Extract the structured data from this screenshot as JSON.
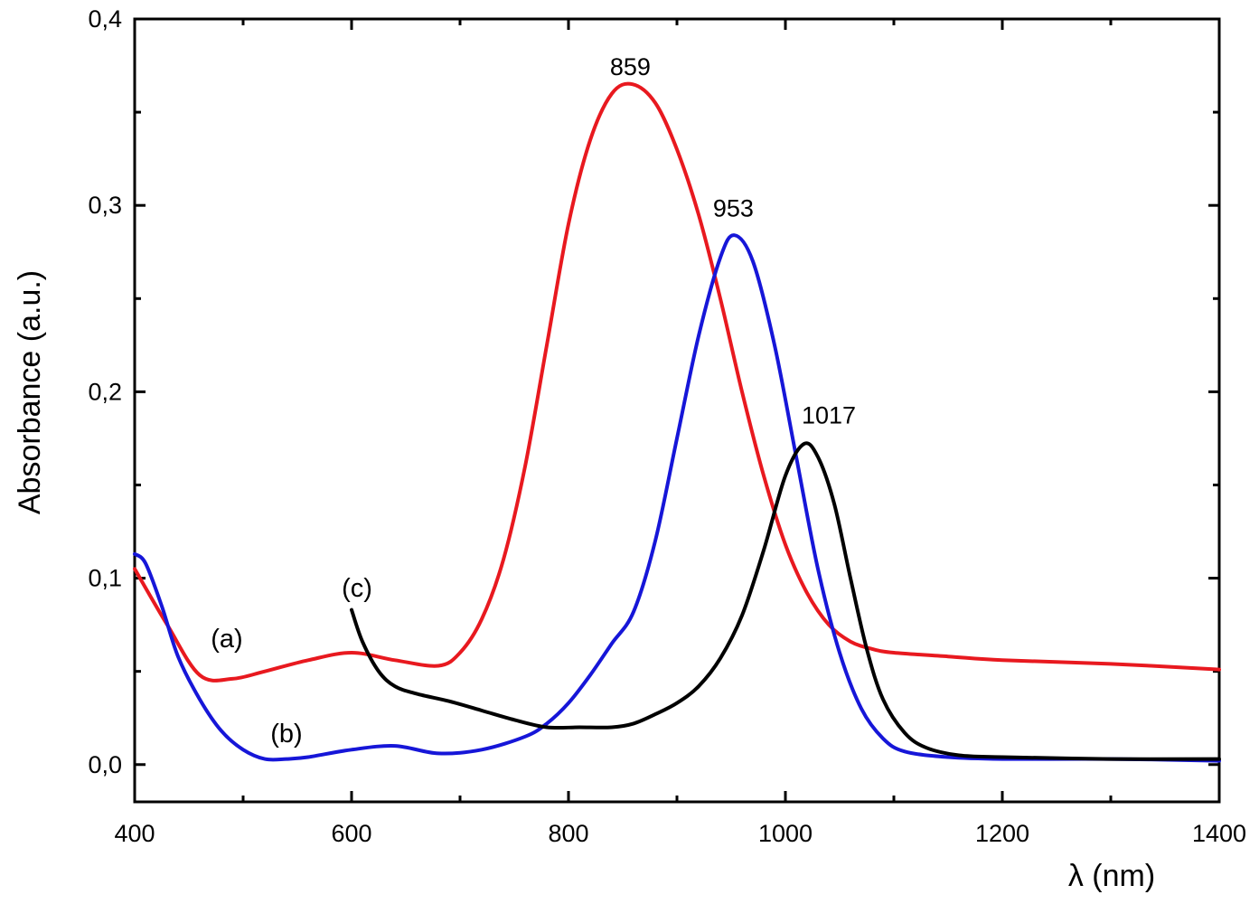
{
  "chart_data": {
    "type": "line",
    "title": "",
    "xlabel": "λ (nm)",
    "ylabel": "Absorbance (a.u.)",
    "xlim": [
      400,
      1400
    ],
    "ylim": [
      -0.02,
      0.4
    ],
    "x_ticks": [
      {
        "value": 400,
        "label": "400"
      },
      {
        "value": 600,
        "label": "600"
      },
      {
        "value": 800,
        "label": "800"
      },
      {
        "value": 1000,
        "label": "1000"
      },
      {
        "value": 1200,
        "label": "1200"
      },
      {
        "value": 1400,
        "label": "1400"
      }
    ],
    "y_ticks": [
      {
        "value": 0.0,
        "label": "0,0"
      },
      {
        "value": 0.1,
        "label": "0,1"
      },
      {
        "value": 0.2,
        "label": "0,2"
      },
      {
        "value": 0.3,
        "label": "0,3"
      },
      {
        "value": 0.4,
        "label": "0,4"
      }
    ],
    "grid": false,
    "series": [
      {
        "name": "(a)",
        "color": "#e8191f",
        "x": [
          400,
          430,
          460,
          490,
          520,
          560,
          600,
          640,
          680,
          700,
          720,
          740,
          760,
          780,
          800,
          820,
          840,
          859,
          880,
          900,
          920,
          940,
          960,
          980,
          1000,
          1020,
          1040,
          1060,
          1080,
          1100,
          1150,
          1200,
          1300,
          1400
        ],
        "y": [
          0.105,
          0.075,
          0.048,
          0.046,
          0.05,
          0.056,
          0.06,
          0.056,
          0.053,
          0.06,
          0.078,
          0.11,
          0.16,
          0.225,
          0.29,
          0.335,
          0.36,
          0.365,
          0.355,
          0.33,
          0.295,
          0.25,
          0.2,
          0.155,
          0.118,
          0.092,
          0.075,
          0.066,
          0.062,
          0.06,
          0.058,
          0.056,
          0.054,
          0.051
        ]
      },
      {
        "name": "(b)",
        "color": "#1616d8",
        "x": [
          400,
          410,
          425,
          440,
          460,
          480,
          500,
          520,
          540,
          560,
          600,
          640,
          680,
          720,
          760,
          780,
          800,
          820,
          840,
          860,
          880,
          900,
          920,
          940,
          953,
          970,
          990,
          1010,
          1030,
          1050,
          1070,
          1090,
          1110,
          1150,
          1200,
          1300,
          1400
        ],
        "y": [
          0.113,
          0.108,
          0.085,
          0.058,
          0.035,
          0.018,
          0.008,
          0.003,
          0.003,
          0.004,
          0.008,
          0.01,
          0.006,
          0.008,
          0.015,
          0.022,
          0.033,
          0.048,
          0.065,
          0.082,
          0.12,
          0.175,
          0.23,
          0.272,
          0.284,
          0.27,
          0.225,
          0.165,
          0.105,
          0.06,
          0.03,
          0.014,
          0.007,
          0.004,
          0.003,
          0.003,
          0.002
        ]
      },
      {
        "name": "(c)",
        "color": "#000000",
        "x": [
          600,
          610,
          625,
          640,
          660,
          690,
          720,
          750,
          780,
          810,
          840,
          860,
          880,
          900,
          920,
          940,
          960,
          980,
          1000,
          1017,
          1030,
          1045,
          1060,
          1075,
          1090,
          1110,
          1130,
          1160,
          1200,
          1300,
          1400
        ],
        "y": [
          0.083,
          0.066,
          0.05,
          0.042,
          0.038,
          0.034,
          0.029,
          0.024,
          0.02,
          0.02,
          0.02,
          0.022,
          0.027,
          0.033,
          0.042,
          0.057,
          0.08,
          0.115,
          0.155,
          0.172,
          0.165,
          0.14,
          0.1,
          0.062,
          0.035,
          0.017,
          0.009,
          0.005,
          0.004,
          0.003,
          0.003
        ]
      }
    ],
    "annotations": [
      {
        "text": "(a)",
        "x": 485,
        "y": 0.063
      },
      {
        "text": "(b)",
        "x": 540,
        "y": 0.012
      },
      {
        "text": "(c)",
        "x": 605,
        "y": 0.09
      },
      {
        "text": "859",
        "x": 857,
        "y": 0.37
      },
      {
        "text": "953",
        "x": 952,
        "y": 0.294
      },
      {
        "text": "1017",
        "x": 1040,
        "y": 0.183
      }
    ]
  }
}
